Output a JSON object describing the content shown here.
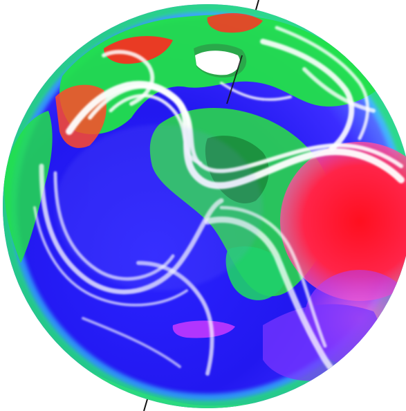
{
  "image": {
    "subject": "false-color-globe",
    "palette": {
      "background": "#ffffff",
      "ocean_deep": "#1a16e6",
      "ocean_mid": "#3b34ff",
      "land_green": "#22e04a",
      "land_cyan": "#2ff0c8",
      "hot_red": "#ff1f2e",
      "hot_pink": "#ff3f9a",
      "violet": "#8a3cff",
      "magenta": "#d02cff",
      "swirl": "#ffffff",
      "axis": "#111111"
    },
    "icons": [
      "globe-icon",
      "axis-line"
    ]
  }
}
